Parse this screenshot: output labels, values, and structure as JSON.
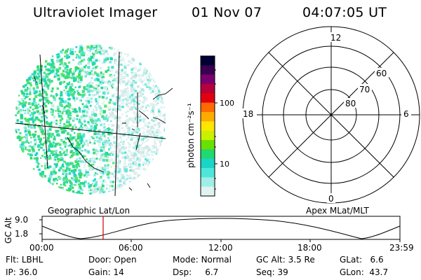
{
  "header": {
    "instrument": "Ultraviolet Imager",
    "date": "01 Nov 07",
    "time": "04:07:05 UT"
  },
  "colorbar": {
    "unit_label": "photon cm⁻²s⁻¹",
    "ticks": [
      "100",
      "10"
    ],
    "colors": [
      "#000033",
      "#3a0050",
      "#7a0070",
      "#b8003a",
      "#e20010",
      "#ff6a00",
      "#ffaa00",
      "#ffe600",
      "#c8f000",
      "#6ae000",
      "#22d870",
      "#19d6c8",
      "#4ee6d8",
      "#a0eee6",
      "#dff4f2"
    ]
  },
  "polar_plot": {
    "mlt_labels": {
      "top": "12",
      "left": "18",
      "right": "6",
      "bottom": "0"
    },
    "lat_labels": [
      "60",
      "70",
      "80"
    ]
  },
  "timeline": {
    "left_title": "Geographic Lat/Lon",
    "right_title": "Apex MLat/MLT",
    "ylabel": "GC Alt",
    "y_ticks": [
      "9.0",
      "1.8"
    ],
    "x_ticks": [
      "00:00",
      "06:00",
      "12:00",
      "18:00",
      "23:59"
    ],
    "marker_time_hours": 4.118,
    "marker_color": "#cc0000"
  },
  "status": {
    "row1": [
      {
        "key": "Flt:",
        "value": "LBHL"
      },
      {
        "key": "Door:",
        "value": "Open"
      },
      {
        "key": "Mode:",
        "value": "Normal"
      },
      {
        "key": "GC Alt:",
        "value": "3.5 Re"
      },
      {
        "key": "GLat:",
        "value": "6.6"
      }
    ],
    "row2": [
      {
        "key": "IP:",
        "value": "36.0"
      },
      {
        "key": "Gain:",
        "value": "14"
      },
      {
        "key": "Dsp:",
        "value": "6.7"
      },
      {
        "key": "Seq:",
        "value": "39"
      },
      {
        "key": "GLon:",
        "value": "43.7"
      }
    ]
  }
}
